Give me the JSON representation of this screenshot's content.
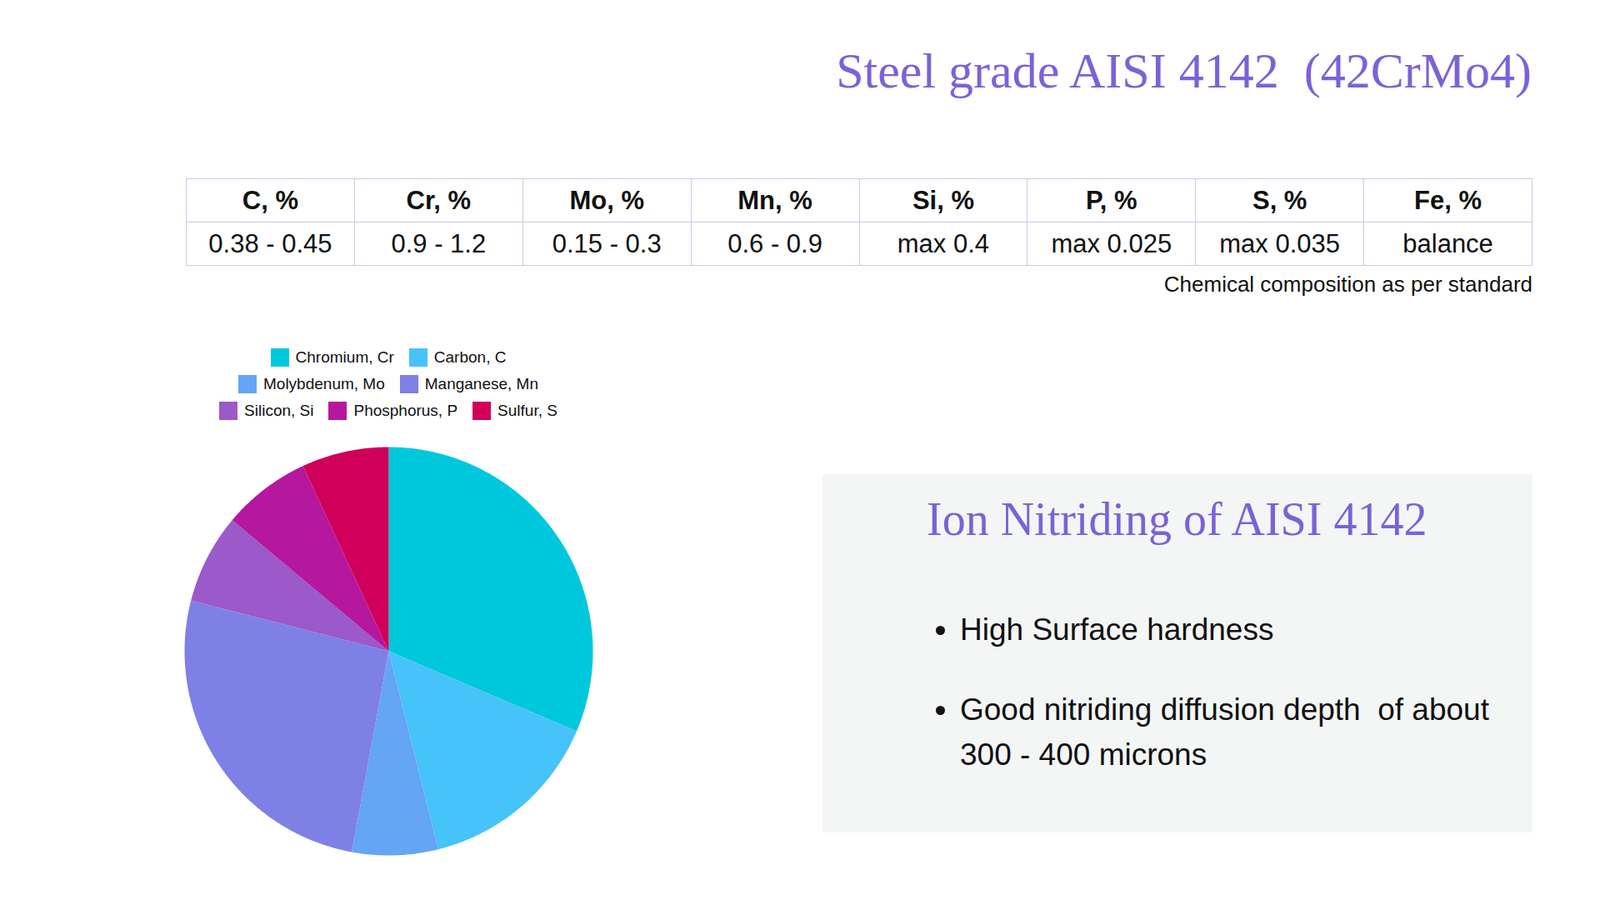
{
  "title": "Steel grade AISI 4142  (42CrMo4)",
  "table": {
    "header": [
      "C, %",
      "Cr, %",
      "Mo, %",
      "Mn, %",
      "Si, %",
      "P, %",
      "S, %",
      "Fe, %"
    ],
    "rows": [
      [
        "0.38 - 0.45",
        "0.9 - 1.2",
        "0.15 - 0.3",
        "0.6 - 0.9",
        "max 0.4",
        "max 0.025",
        "max 0.035",
        "balance"
      ]
    ]
  },
  "caption": "Chemical composition as per standard",
  "chart_data": {
    "type": "pie",
    "categories": [
      "Chromium, Cr",
      "Carbon, C",
      "Molybdenum, Mo",
      "Manganese, Mn",
      "Silicon, Si",
      "Phosphorus, P",
      "Sulfur, S"
    ],
    "values": [
      31.4,
      14.7,
      6.8,
      26.1,
      7.1,
      7.0,
      6.9
    ],
    "colors": [
      "#00c8dc",
      "#46c3f8",
      "#64a5f5",
      "#7e80e6",
      "#9b59c9",
      "#b5179e",
      "#d0005a"
    ],
    "legend": "top"
  },
  "panel": {
    "title": "Ion Nitriding of AISI 4142",
    "bullets": [
      "High Surface hardness",
      "Good nitriding diffusion depth  of about 300 - 400 microns"
    ]
  }
}
